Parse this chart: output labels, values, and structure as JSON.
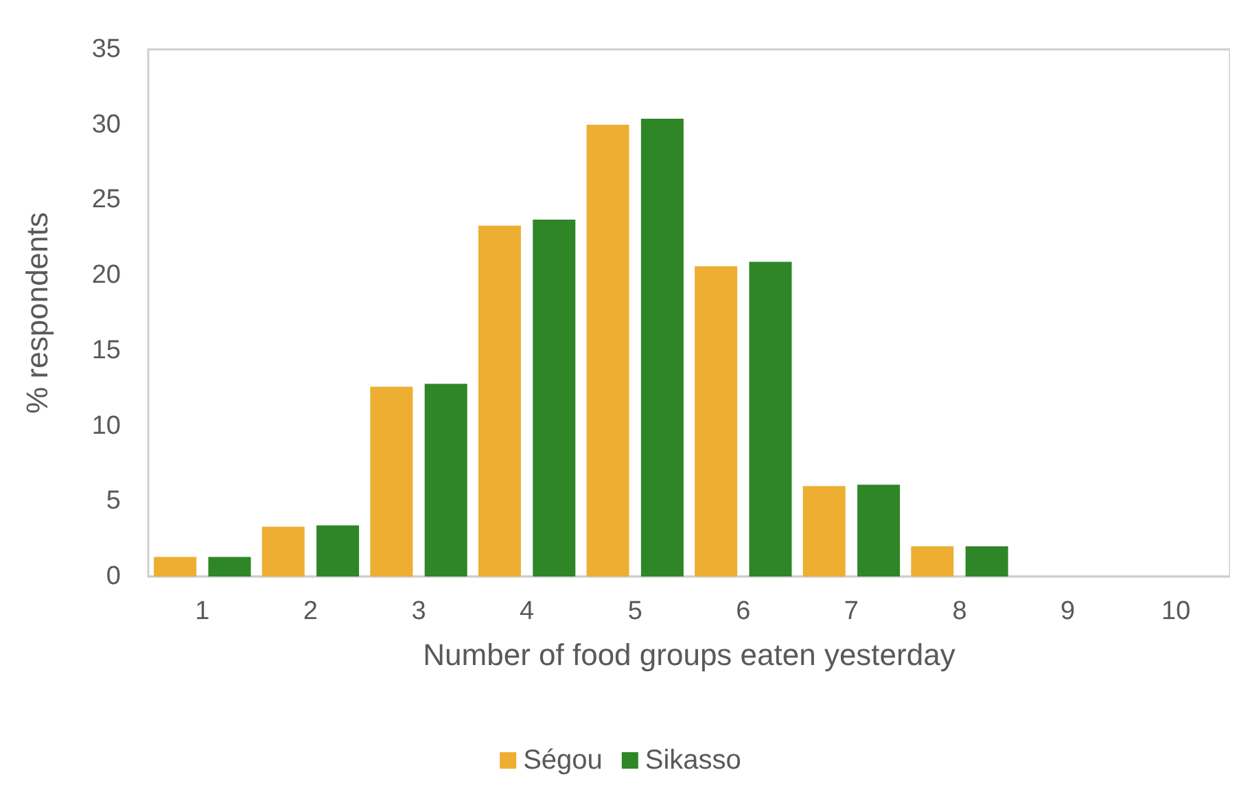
{
  "chart_data": {
    "type": "bar",
    "xlabel": "Number of food groups eaten yesterday",
    "ylabel": "% respondents",
    "categories": [
      "1",
      "2",
      "3",
      "4",
      "5",
      "6",
      "7",
      "8",
      "9",
      "10"
    ],
    "series": [
      {
        "name": "Ségou",
        "color": "#edae31",
        "values": [
          1.3,
          3.3,
          12.6,
          23.3,
          30.0,
          20.6,
          6.0,
          2.0,
          0,
          0
        ]
      },
      {
        "name": "Sikasso",
        "color": "#2e8626",
        "values": [
          1.3,
          3.4,
          12.8,
          23.7,
          30.4,
          20.9,
          6.1,
          2.0,
          0,
          0
        ]
      }
    ],
    "ylim": [
      0,
      35
    ],
    "yticks": [
      0,
      5,
      10,
      15,
      20,
      25,
      30,
      35
    ],
    "grid": false,
    "legend": "bottom"
  }
}
